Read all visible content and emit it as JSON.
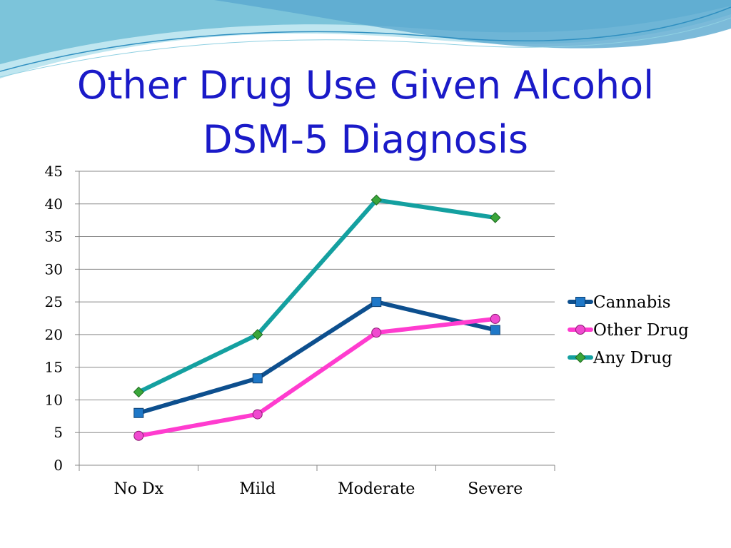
{
  "slide": {
    "title_line1": "Other Drug Use Given Alcohol",
    "title_line2": "DSM-5 Diagnosis",
    "title_color": "#1a1ac8"
  },
  "chart_data": {
    "type": "line",
    "categories": [
      "No Dx",
      "Mild",
      "Moderate",
      "Severe"
    ],
    "ylim": [
      0,
      45
    ],
    "yticks": [
      0,
      5,
      10,
      15,
      20,
      25,
      30,
      35,
      40,
      45
    ],
    "grid": true,
    "legend": "right",
    "series": [
      {
        "name": "Cannabis",
        "values": [
          8.0,
          13.3,
          25.0,
          20.7
        ],
        "color": "#0d4f8e",
        "marker": "square",
        "marker_color": "#1f78c8"
      },
      {
        "name": "Other Drug",
        "values": [
          4.5,
          7.8,
          20.3,
          22.4
        ],
        "color": "#ff3ccf",
        "marker": "circle",
        "marker_color": "#f04ad0"
      },
      {
        "name": "Any Drug",
        "values": [
          11.2,
          20.0,
          40.6,
          37.9
        ],
        "color": "#14a0a0",
        "marker": "diamond",
        "marker_color": "#3aa63a"
      }
    ]
  }
}
